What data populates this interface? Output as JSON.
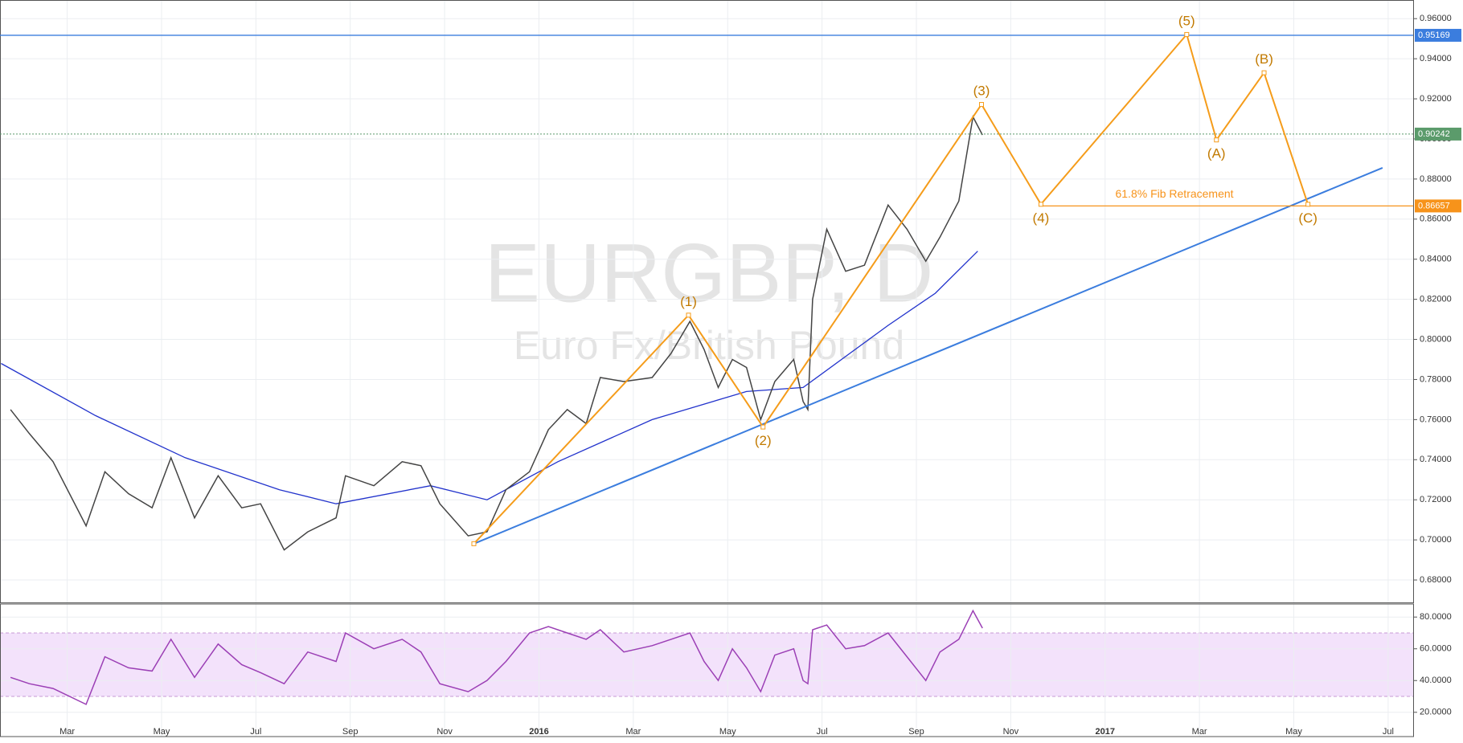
{
  "chart_data": [
    {
      "type": "line",
      "title": "EURGBP, D",
      "subtitle": "Euro Fx/British Pound",
      "x": [
        0.8,
        1.2,
        1.7,
        2.4,
        2.8,
        3.3,
        3.8,
        4.2,
        4.7,
        5.2,
        5.7,
        6.1,
        6.6,
        7.1,
        7.7,
        7.9,
        8.5,
        9.1,
        9.5,
        9.9,
        10.5,
        10.9,
        11.3,
        11.8,
        12.2,
        12.6,
        13.0,
        13.3,
        13.8,
        14.4,
        14.8,
        15.2,
        15.5,
        15.8,
        16.1,
        16.4,
        16.7,
        17.0,
        17.4,
        17.6,
        17.7,
        17.8,
        18.1,
        18.5,
        18.9,
        19.4,
        19.8,
        20.2,
        20.5,
        20.9,
        21.2,
        21.4
      ],
      "series": [
        {
          "color": "#444444",
          "values": [
            0.765,
            0.753,
            0.739,
            0.707,
            0.734,
            0.723,
            0.716,
            0.741,
            0.711,
            0.732,
            0.716,
            0.718,
            0.695,
            0.704,
            0.711,
            0.732,
            0.727,
            0.739,
            0.737,
            0.718,
            0.702,
            0.704,
            0.725,
            0.734,
            0.755,
            0.765,
            0.758,
            0.781,
            0.779,
            0.781,
            0.793,
            0.809,
            0.795,
            0.776,
            0.79,
            0.786,
            0.76,
            0.779,
            0.79,
            0.769,
            0.765,
            0.82,
            0.855,
            0.834,
            0.837,
            0.867,
            0.855,
            0.839,
            0.851,
            0.869,
            0.911,
            0.902
          ]
        }
      ],
      "moving_average": {
        "color": "#2233cc",
        "x": [
          0.6,
          2.6,
          4.5,
          6.5,
          7.7,
          9.7,
          10.9,
          12.4,
          14.4,
          16.4,
          17.6,
          19.4,
          20.4,
          21.3
        ],
        "values": [
          0.788,
          0.762,
          0.741,
          0.725,
          0.718,
          0.727,
          0.72,
          0.739,
          0.76,
          0.774,
          0.776,
          0.807,
          0.823,
          0.844
        ]
      },
      "trend_line": {
        "color": "#3b7dde",
        "x": [
          10.62,
          29.88
        ],
        "values": [
          0.6981,
          0.8856
        ]
      },
      "waves": {
        "color": "#f59c1a",
        "label_color": "#c27a00",
        "x": [
          10.62,
          15.17,
          16.75,
          21.38,
          22.64,
          25.73,
          26.36,
          27.37,
          28.3
        ],
        "values": [
          0.6981,
          0.8121,
          0.7563,
          0.9172,
          0.8674,
          0.9521,
          0.8995,
          0.933,
          0.8674
        ],
        "labels": [
          null,
          "(1)",
          "(2)",
          "(3)",
          "(4)",
          "(5)",
          "(A)",
          "(B)",
          "(C)"
        ]
      },
      "annotation": "61.8% Fib Retracement",
      "levels": [
        {
          "value": 0.95169,
          "color": "#3b7dde",
          "style": "solid"
        },
        {
          "value": 0.90242,
          "color": "#5b9b6b",
          "style": "dotted"
        },
        {
          "value": 0.86657,
          "color": "#f7931a",
          "style": "solid",
          "start": 22.64
        }
      ],
      "xlim": [
        0.576,
        30.53
      ],
      "ylim": [
        0.6688,
        0.9693
      ],
      "xticks": [
        {
          "value": 2,
          "label": "Mar"
        },
        {
          "value": 4,
          "label": "May"
        },
        {
          "value": 6,
          "label": "Jul"
        },
        {
          "value": 8,
          "label": "Sep"
        },
        {
          "value": 10,
          "label": "Nov"
        },
        {
          "value": 12,
          "label": "2016"
        },
        {
          "value": 14,
          "label": "Mar"
        },
        {
          "value": 16,
          "label": "May"
        },
        {
          "value": 18,
          "label": "Jul"
        },
        {
          "value": 20,
          "label": "Sep"
        },
        {
          "value": 22,
          "label": "Nov"
        },
        {
          "value": 24,
          "label": "2017"
        },
        {
          "value": 26,
          "label": "Mar"
        },
        {
          "value": 28,
          "label": "May"
        },
        {
          "value": 30,
          "label": "Jul"
        }
      ],
      "yticks": [
        {
          "value": 0.68,
          "label": "0.68000"
        },
        {
          "value": 0.7,
          "label": "0.70000"
        },
        {
          "value": 0.72,
          "label": "0.72000"
        },
        {
          "value": 0.74,
          "label": "0.74000"
        },
        {
          "value": 0.76,
          "label": "0.76000"
        },
        {
          "value": 0.78,
          "label": "0.78000"
        },
        {
          "value": 0.8,
          "label": "0.80000"
        },
        {
          "value": 0.82,
          "label": "0.82000"
        },
        {
          "value": 0.84,
          "label": "0.84000"
        },
        {
          "value": 0.86,
          "label": "0.86000"
        },
        {
          "value": 0.88,
          "label": "0.88000"
        },
        {
          "value": 0.9,
          "label": "0.90000"
        },
        {
          "value": 0.92,
          "label": "0.92000"
        },
        {
          "value": 0.94,
          "label": "0.94000"
        },
        {
          "value": 0.96,
          "label": "0.96000"
        }
      ],
      "grid": true
    },
    {
      "type": "line",
      "series": [
        {
          "color": "#9b3fb5",
          "values": [
            42,
            38,
            35,
            25,
            55,
            48,
            46,
            66,
            42,
            63,
            50,
            45,
            38,
            58,
            52,
            70,
            60,
            66,
            58,
            38,
            33,
            40,
            52,
            70,
            74,
            70,
            66,
            72,
            58,
            62,
            66,
            70,
            52,
            40,
            60,
            48,
            33,
            56,
            60,
            40,
            38,
            72,
            75,
            60,
            62,
            70,
            55,
            40,
            58,
            66,
            84,
            73
          ]
        }
      ],
      "band": [
        30,
        70
      ],
      "band_color": "#f3e2fb",
      "ylim": [
        4.7,
        88.2
      ],
      "yticks": [
        {
          "value": 20,
          "label": "20.0000"
        },
        {
          "value": 40,
          "label": "40.0000"
        },
        {
          "value": 60,
          "label": "60.0000"
        },
        {
          "value": 80,
          "label": "80.0000"
        }
      ],
      "grid": true
    }
  ]
}
